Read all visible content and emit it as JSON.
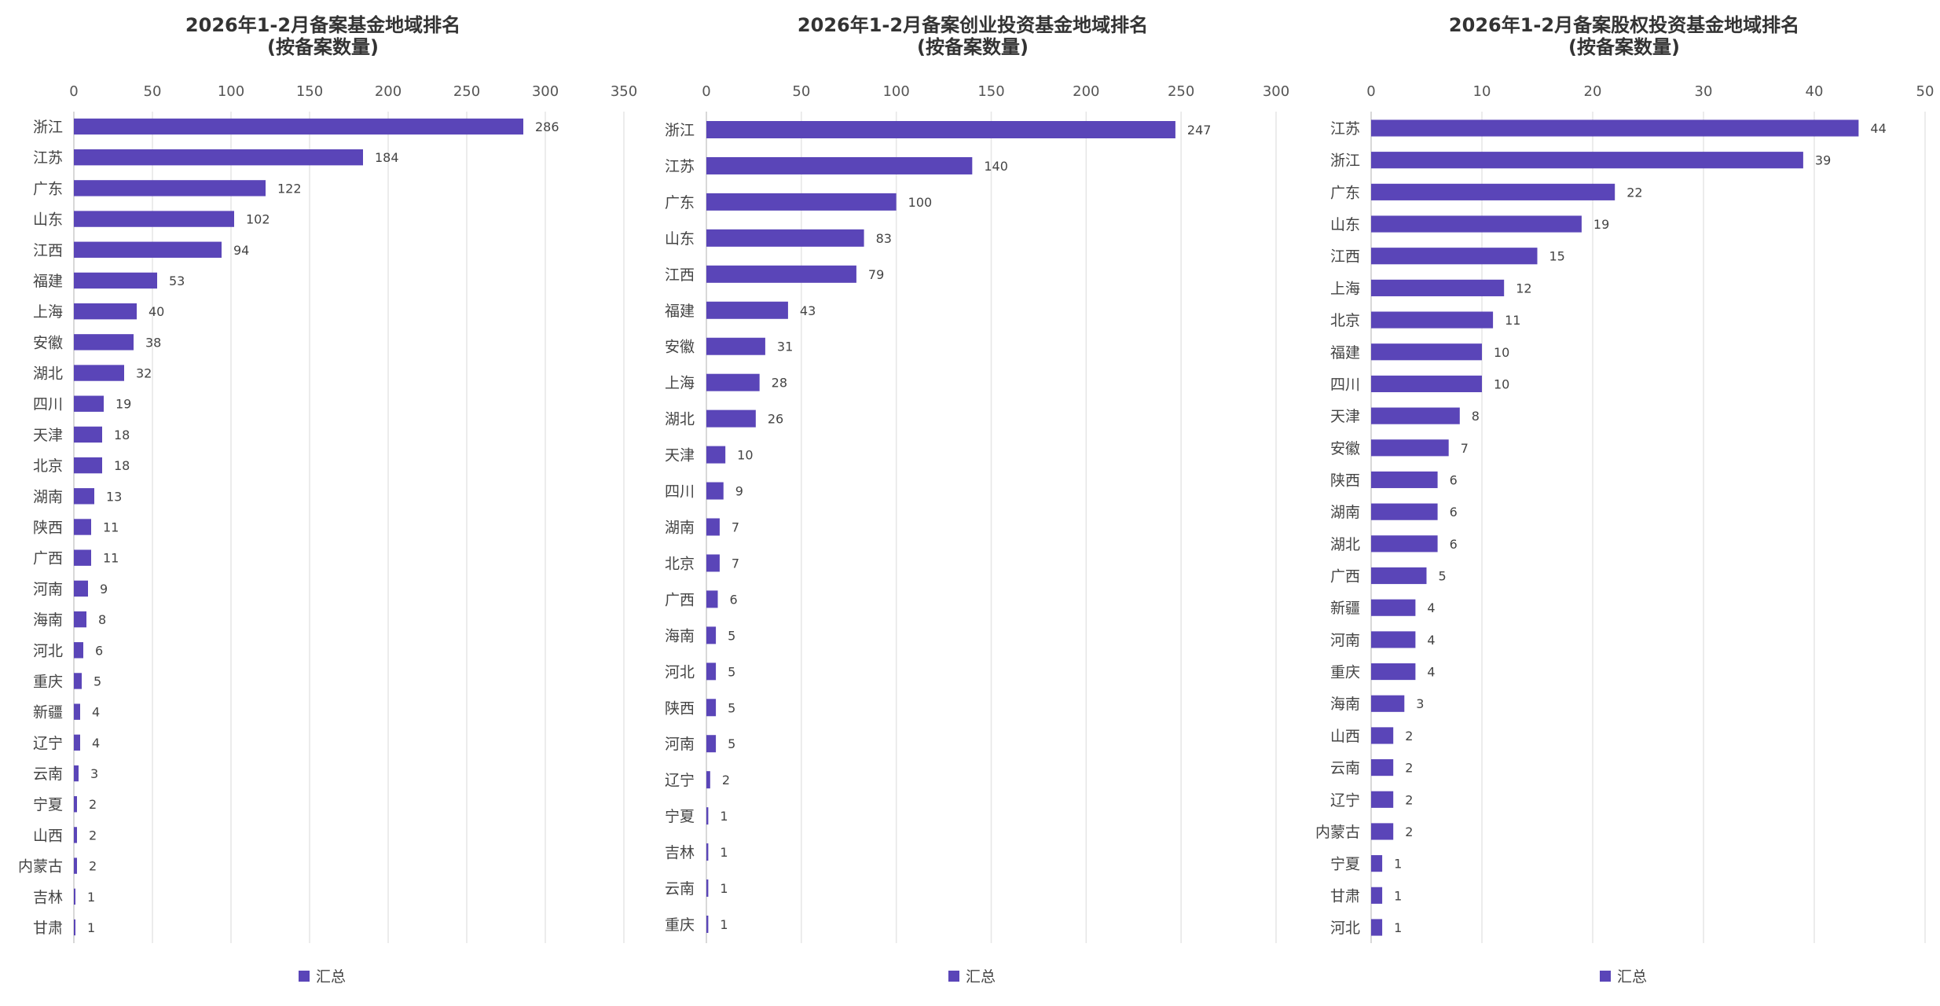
{
  "colors": {
    "bar": "#5a45b8",
    "grid": "#e6e6e6",
    "text": "#444444"
  },
  "chart_data": [
    {
      "type": "bar",
      "orientation": "horizontal",
      "title": "2026年1-2月备案基金地域排名",
      "subtitle": "(按备案数量)",
      "xlim": [
        0,
        350
      ],
      "xticks": [
        0,
        50,
        100,
        150,
        200,
        250,
        300,
        350
      ],
      "grid": true,
      "legend": {
        "position": "bottom",
        "label": "汇总"
      },
      "categories": [
        "浙江",
        "江苏",
        "广东",
        "山东",
        "江西",
        "福建",
        "上海",
        "安徽",
        "湖北",
        "四川",
        "天津",
        "北京",
        "湖南",
        "陕西",
        "广西",
        "河南",
        "海南",
        "河北",
        "重庆",
        "新疆",
        "辽宁",
        "云南",
        "宁夏",
        "山西",
        "内蒙古",
        "吉林",
        "甘肃"
      ],
      "values": [
        286,
        184,
        122,
        102,
        94,
        53,
        40,
        38,
        32,
        19,
        18,
        18,
        13,
        11,
        11,
        9,
        8,
        6,
        5,
        4,
        4,
        3,
        2,
        2,
        2,
        1,
        1
      ]
    },
    {
      "type": "bar",
      "orientation": "horizontal",
      "title": "2026年1-2月备案创业投资基金地域排名",
      "subtitle": "(按备案数量)",
      "xlim": [
        0,
        300
      ],
      "xticks": [
        0,
        50,
        100,
        150,
        200,
        250,
        300
      ],
      "grid": true,
      "legend": {
        "position": "bottom",
        "label": "汇总"
      },
      "categories": [
        "浙江",
        "江苏",
        "广东",
        "山东",
        "江西",
        "福建",
        "安徽",
        "上海",
        "湖北",
        "天津",
        "四川",
        "湖南",
        "北京",
        "广西",
        "海南",
        "河北",
        "陕西",
        "河南",
        "辽宁",
        "宁夏",
        "吉林",
        "云南",
        "重庆"
      ],
      "values": [
        247,
        140,
        100,
        83,
        79,
        43,
        31,
        28,
        26,
        10,
        9,
        7,
        7,
        6,
        5,
        5,
        5,
        5,
        2,
        1,
        1,
        1,
        1
      ]
    },
    {
      "type": "bar",
      "orientation": "horizontal",
      "title": "2026年1-2月备案股权投资基金地域排名",
      "subtitle": "(按备案数量)",
      "xlim": [
        0,
        50
      ],
      "xticks": [
        0,
        10,
        20,
        30,
        40,
        50
      ],
      "grid": true,
      "legend": {
        "position": "bottom",
        "label": "汇总"
      },
      "categories": [
        "江苏",
        "浙江",
        "广东",
        "山东",
        "江西",
        "上海",
        "北京",
        "福建",
        "四川",
        "天津",
        "安徽",
        "陕西",
        "湖南",
        "湖北",
        "广西",
        "新疆",
        "河南",
        "重庆",
        "海南",
        "山西",
        "云南",
        "辽宁",
        "内蒙古",
        "宁夏",
        "甘肃",
        "河北"
      ],
      "values": [
        44,
        39,
        22,
        19,
        15,
        12,
        11,
        10,
        10,
        8,
        7,
        6,
        6,
        6,
        5,
        4,
        4,
        4,
        3,
        2,
        2,
        2,
        2,
        1,
        1,
        1
      ]
    }
  ]
}
